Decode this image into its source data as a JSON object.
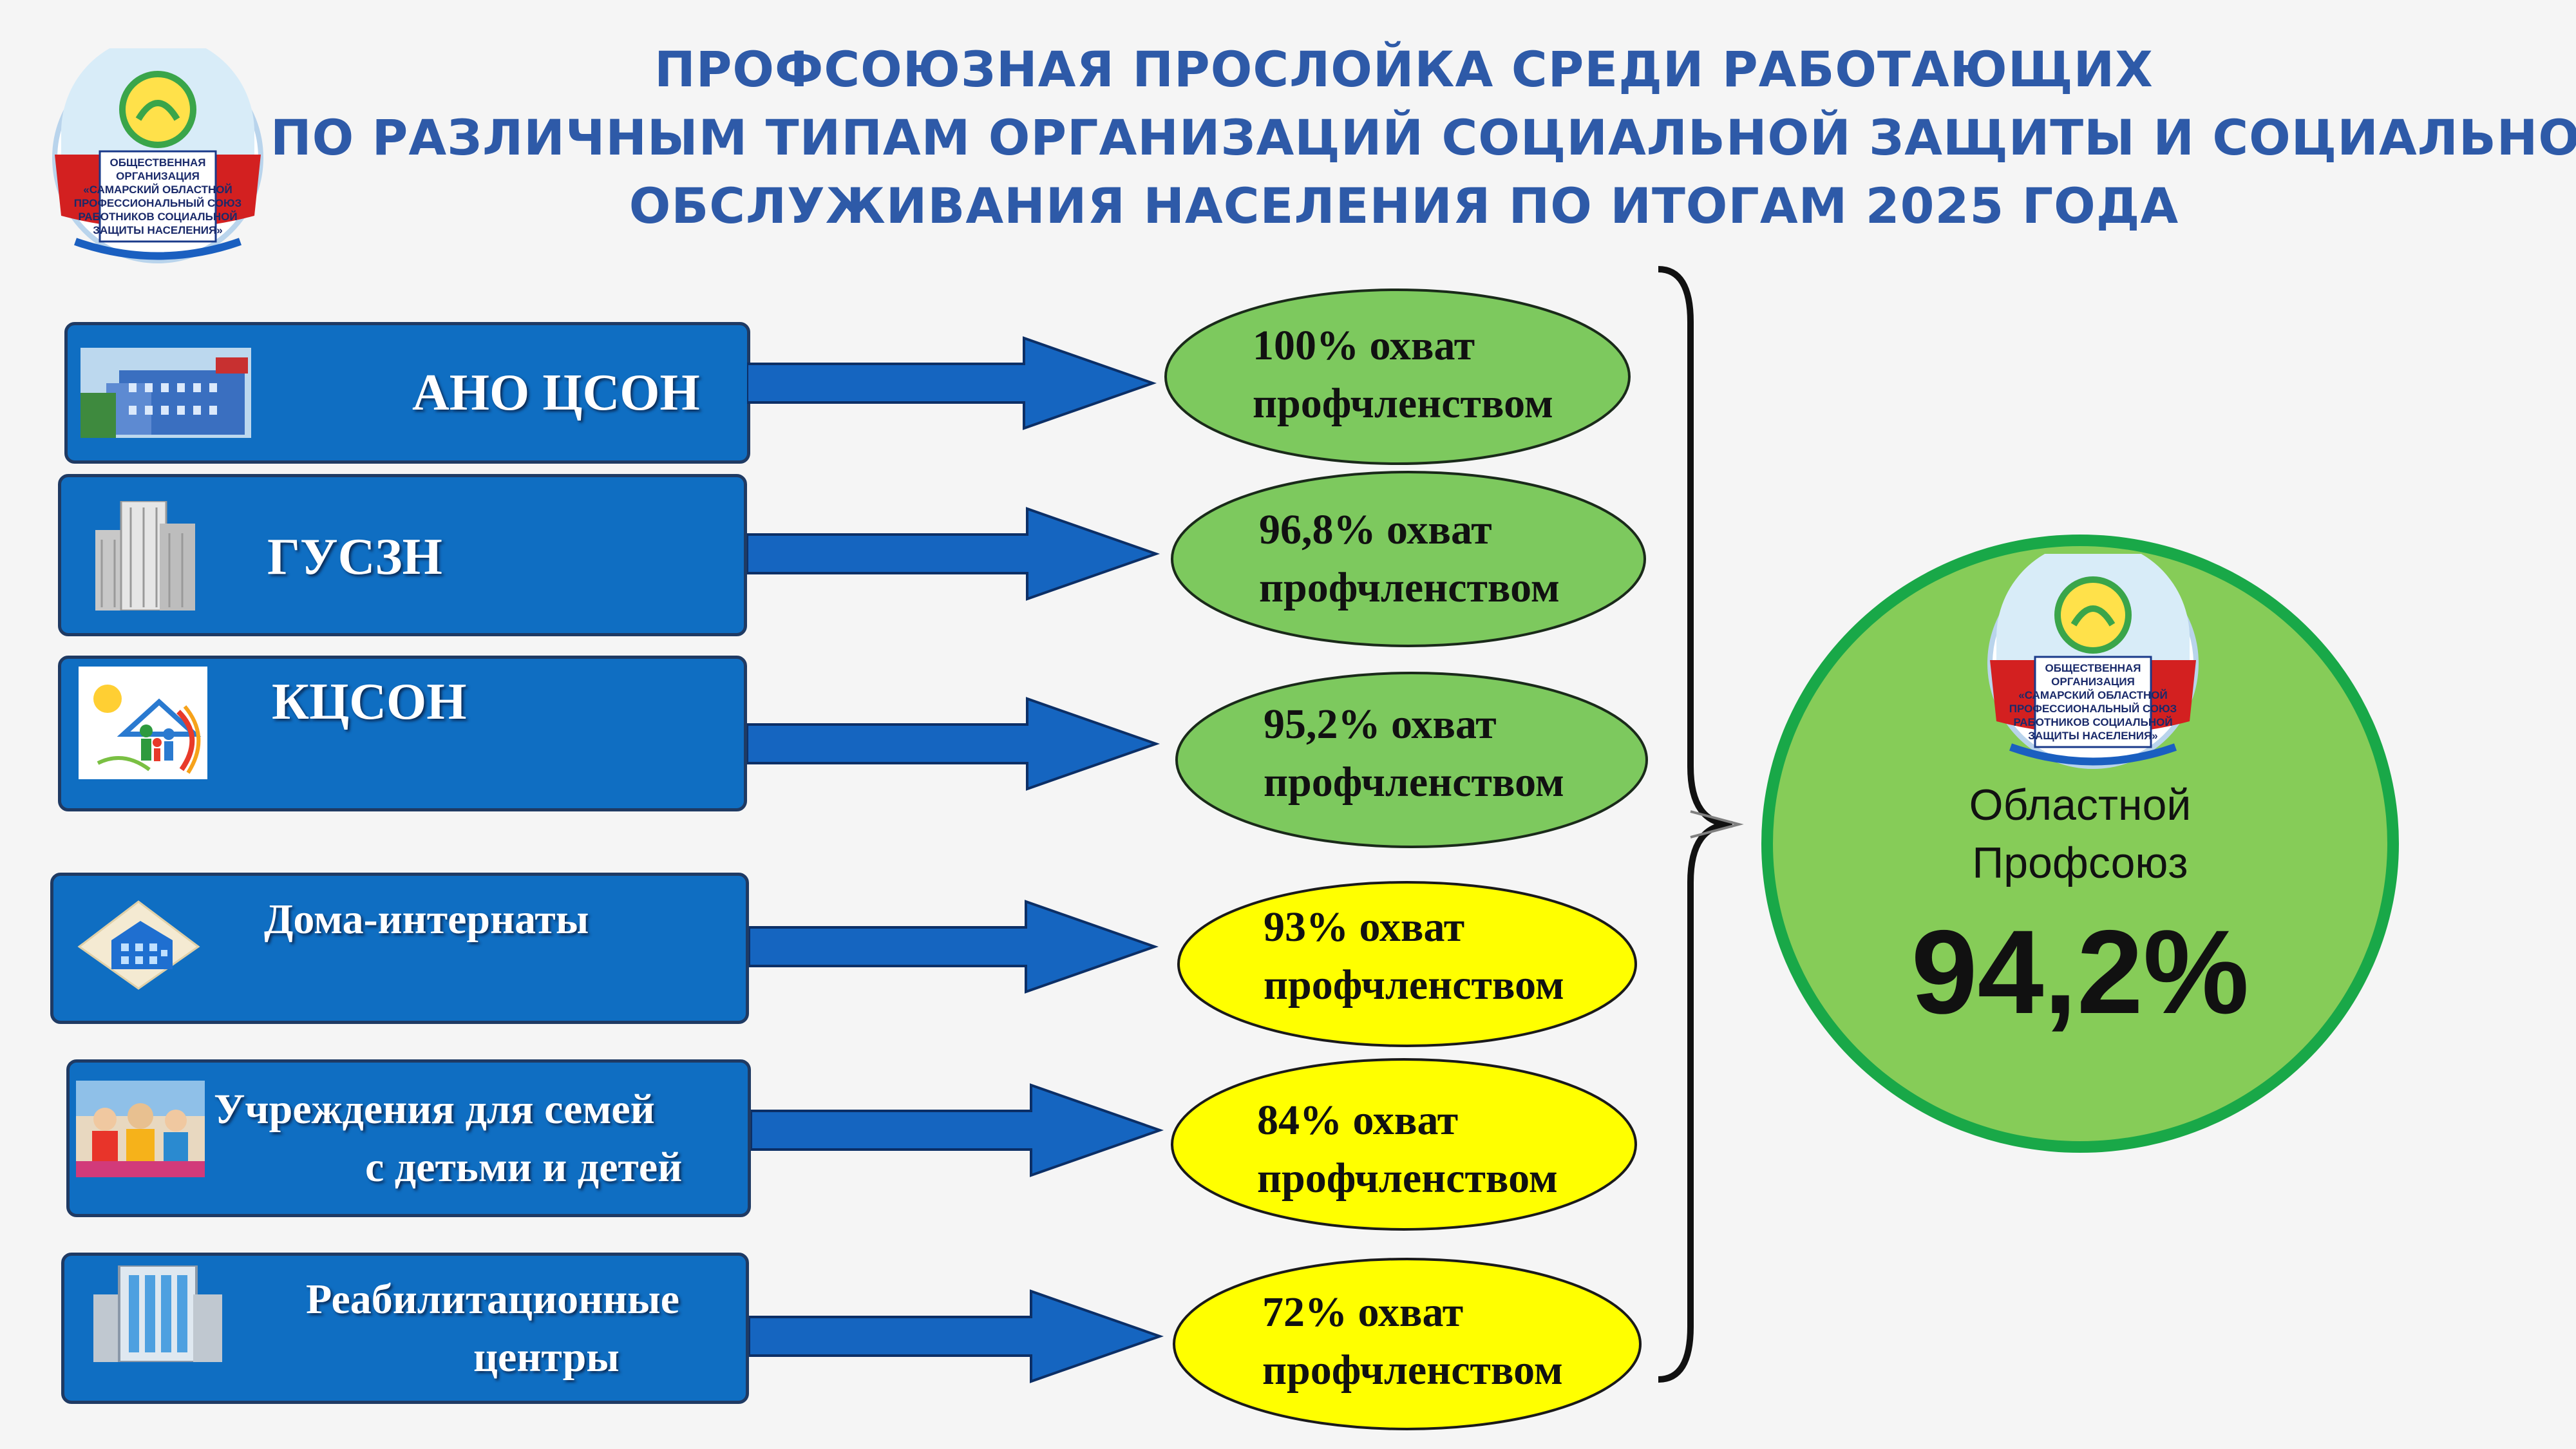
{
  "title": {
    "line1": "ПРОФСОЮЗНАЯ ПРОСЛОЙКА СРЕДИ РАБОТАЮЩИХ",
    "line2": "ПО РАЗЛИЧНЫМ  ТИПАМ ОРГАНИЗАЦИЙ  СОЦИАЛЬНОЙ ЗАЩИТЫ И СОЦИАЛЬНОГО",
    "line3": "ОБСЛУЖИВАНИЯ НАСЕЛЕНИЯ ПО ИТОГАМ 2025 ГОДА"
  },
  "logo": {
    "lines": [
      "ОБЩЕСТВЕННАЯ",
      "ОРГАНИЗАЦИЯ",
      "«САМАРСКИЙ ОБЛАСТНОЙ",
      "ПРОФЕССИОНАЛЬНЫЙ СОЮЗ",
      "РАБОТНИКОВ СОЦИАЛЬНОЙ",
      "ЗАЩИТЫ НАСЕЛЕНИЯ»"
    ]
  },
  "organizations": [
    {
      "name": "АНО ЦСОН",
      "coverage_pct": 100,
      "coverage_text_line1": "100% охват",
      "coverage_text_line2": "профчленством",
      "color": "#7dc95e"
    },
    {
      "name": "ГУСЗН",
      "coverage_pct": 96.8,
      "coverage_text_line1": "96,8% охват",
      "coverage_text_line2": "профчленством",
      "color": "#7dc95e"
    },
    {
      "name": "КЦСОН",
      "coverage_pct": 95.2,
      "coverage_text_line1": "95,2% охват",
      "coverage_text_line2": "профчленством",
      "color": "#7dc95e"
    },
    {
      "name": "Дома-интернаты",
      "coverage_pct": 93,
      "coverage_text_line1": "93% охват",
      "coverage_text_line2": "профчленством",
      "color": "#ffff00"
    },
    {
      "name_line1": "Учреждения для семей",
      "name_line2": "с детьми и детей",
      "coverage_pct": 84,
      "coverage_text_line1": "84% охват",
      "coverage_text_line2": "профчленством",
      "color": "#ffff00"
    },
    {
      "name_line1": "Реабилитационные",
      "name_line2": "центры",
      "coverage_pct": 72,
      "coverage_text_line1": "72% охват",
      "coverage_text_line2": "профчленством",
      "color": "#ffff00"
    }
  ],
  "summary": {
    "label_line1": "Областной",
    "label_line2": "Профсоюз",
    "value": "94,2%",
    "coverage_pct": 94.2
  },
  "colors": {
    "title": "#2e5aa8",
    "box_fill": "#0f6ec2",
    "arrow_fill": "#1565c0",
    "green_ellipse": "#7dc95e",
    "yellow_ellipse": "#ffff00",
    "summary_fill": "#86cc58",
    "summary_border": "#19a848"
  }
}
